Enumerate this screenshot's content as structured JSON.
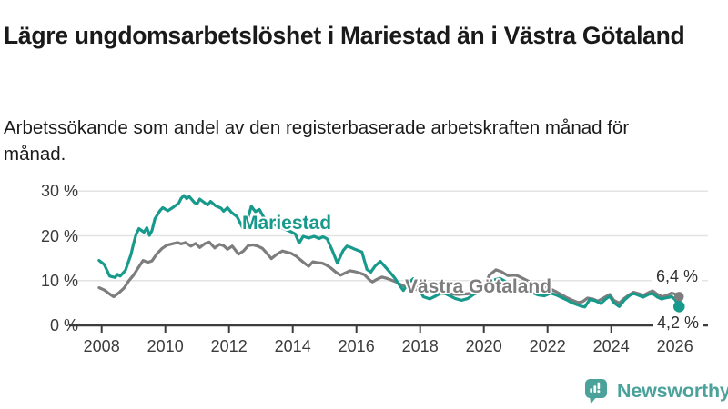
{
  "header": {
    "title": "Lägre ungdomsarbetslöshet i Mariestad än i Västra Götaland",
    "subtitle": "Arbetssökande som andel av den registerbaserade arbetskraften månad för månad."
  },
  "chart_data": {
    "type": "line",
    "title": "Lägre ungdomsarbetslöshet i Mariestad än i Västra Götaland",
    "unit": "%",
    "grid": true,
    "legend_position": "inline-labels-on-lines",
    "colors": {
      "mariestad": "#179a8b",
      "vastra_gotaland": "#7d7d7d",
      "gridline": "#e3e3e3",
      "axis": "#3d3d3d",
      "brand": "#4ba29b"
    },
    "x_axis": {
      "range": [
        2007.9,
        2026.9
      ],
      "ticks": [
        {
          "value": 2008,
          "label": "2008"
        },
        {
          "value": 2010,
          "label": "2010"
        },
        {
          "value": 2012,
          "label": "2012"
        },
        {
          "value": 2014,
          "label": "2014"
        },
        {
          "value": 2016,
          "label": "2016"
        },
        {
          "value": 2018,
          "label": "2018"
        },
        {
          "value": 2020,
          "label": "2020"
        },
        {
          "value": 2022,
          "label": "2022"
        },
        {
          "value": 2024,
          "label": "2024"
        },
        {
          "value": 2026,
          "label": "2026"
        }
      ]
    },
    "y_axis": {
      "range": [
        0,
        30
      ],
      "ticks": [
        {
          "value": 30,
          "label": "30 %"
        },
        {
          "value": 20,
          "label": "20 %"
        },
        {
          "value": 10,
          "label": "10 %"
        },
        {
          "value": 0,
          "label": "0 %"
        }
      ]
    },
    "end_labels": [
      {
        "series": "Västra Götaland",
        "text": "6,4 %"
      },
      {
        "series": "Mariestad",
        "text": "4,2 %"
      }
    ],
    "series": [
      {
        "name": "Västra Götaland",
        "color": "#7d7d7d",
        "last_value": 6.4,
        "points": [
          [
            2007.92,
            8.4
          ],
          [
            2008.08,
            7.9
          ],
          [
            2008.25,
            7.0
          ],
          [
            2008.38,
            6.4
          ],
          [
            2008.55,
            7.3
          ],
          [
            2008.7,
            8.3
          ],
          [
            2008.85,
            9.9
          ],
          [
            2009.0,
            11.2
          ],
          [
            2009.17,
            13.1
          ],
          [
            2009.3,
            14.5
          ],
          [
            2009.45,
            14.1
          ],
          [
            2009.58,
            14.4
          ],
          [
            2009.75,
            16.1
          ],
          [
            2009.9,
            17.2
          ],
          [
            2010.05,
            17.9
          ],
          [
            2010.2,
            18.2
          ],
          [
            2010.38,
            18.5
          ],
          [
            2010.5,
            18.2
          ],
          [
            2010.63,
            18.5
          ],
          [
            2010.8,
            17.7
          ],
          [
            2010.95,
            18.3
          ],
          [
            2011.08,
            17.4
          ],
          [
            2011.25,
            18.3
          ],
          [
            2011.38,
            18.6
          ],
          [
            2011.55,
            17.3
          ],
          [
            2011.7,
            18.1
          ],
          [
            2011.83,
            17.8
          ],
          [
            2011.95,
            17.0
          ],
          [
            2012.1,
            17.7
          ],
          [
            2012.3,
            15.9
          ],
          [
            2012.45,
            16.6
          ],
          [
            2012.6,
            17.8
          ],
          [
            2012.75,
            18.0
          ],
          [
            2012.9,
            17.7
          ],
          [
            2013.05,
            17.2
          ],
          [
            2013.2,
            16.0
          ],
          [
            2013.33,
            14.9
          ],
          [
            2013.5,
            15.9
          ],
          [
            2013.67,
            16.6
          ],
          [
            2013.83,
            16.3
          ],
          [
            2013.95,
            16.1
          ],
          [
            2014.1,
            15.5
          ],
          [
            2014.25,
            14.6
          ],
          [
            2014.42,
            13.6
          ],
          [
            2014.5,
            13.2
          ],
          [
            2014.63,
            14.2
          ],
          [
            2014.78,
            14.0
          ],
          [
            2014.92,
            13.9
          ],
          [
            2015.05,
            13.5
          ],
          [
            2015.2,
            12.8
          ],
          [
            2015.35,
            11.9
          ],
          [
            2015.5,
            11.2
          ],
          [
            2015.67,
            11.8
          ],
          [
            2015.8,
            12.2
          ],
          [
            2015.95,
            12.0
          ],
          [
            2016.1,
            11.7
          ],
          [
            2016.25,
            11.3
          ],
          [
            2016.42,
            10.1
          ],
          [
            2016.5,
            9.7
          ],
          [
            2016.67,
            10.4
          ],
          [
            2016.8,
            10.8
          ],
          [
            2016.95,
            10.5
          ],
          [
            2017.1,
            10.1
          ],
          [
            2017.25,
            9.7
          ],
          [
            2017.42,
            9.0
          ],
          [
            2017.6,
            8.5
          ],
          [
            2017.8,
            8.1
          ],
          [
            2018.0,
            7.8
          ],
          [
            2018.2,
            7.5
          ],
          [
            2018.4,
            7.3
          ],
          [
            2018.6,
            7.2
          ],
          [
            2018.8,
            7.1
          ],
          [
            2019.0,
            7.0
          ],
          [
            2019.2,
            6.9
          ],
          [
            2019.4,
            7.0
          ],
          [
            2019.6,
            7.1
          ],
          [
            2019.8,
            7.4
          ],
          [
            2020.0,
            8.3
          ],
          [
            2020.17,
            11.2
          ],
          [
            2020.38,
            12.4
          ],
          [
            2020.55,
            12.0
          ],
          [
            2020.75,
            11.1
          ],
          [
            2020.95,
            11.2
          ],
          [
            2021.08,
            11.0
          ],
          [
            2021.25,
            10.4
          ],
          [
            2021.5,
            9.5
          ],
          [
            2021.75,
            8.8
          ],
          [
            2021.95,
            8.4
          ],
          [
            2022.1,
            8.1
          ],
          [
            2022.3,
            7.4
          ],
          [
            2022.45,
            6.8
          ],
          [
            2022.6,
            6.2
          ],
          [
            2022.75,
            5.7
          ],
          [
            2022.95,
            5.1
          ],
          [
            2023.1,
            5.3
          ],
          [
            2023.25,
            6.1
          ],
          [
            2023.42,
            5.9
          ],
          [
            2023.58,
            5.4
          ],
          [
            2023.75,
            6.1
          ],
          [
            2023.95,
            6.9
          ],
          [
            2024.08,
            5.6
          ],
          [
            2024.25,
            5.0
          ],
          [
            2024.42,
            6.1
          ],
          [
            2024.58,
            6.9
          ],
          [
            2024.7,
            7.4
          ],
          [
            2024.85,
            7.1
          ],
          [
            2025.0,
            6.7
          ],
          [
            2025.17,
            7.3
          ],
          [
            2025.3,
            7.7
          ],
          [
            2025.45,
            6.9
          ],
          [
            2025.6,
            6.4
          ],
          [
            2025.75,
            6.7
          ],
          [
            2025.9,
            7.2
          ],
          [
            2026.0,
            7.0
          ],
          [
            2026.13,
            6.4
          ]
        ]
      },
      {
        "name": "Mariestad",
        "color": "#179a8b",
        "last_value": 4.2,
        "points": [
          [
            2007.92,
            14.5
          ],
          [
            2008.08,
            13.6
          ],
          [
            2008.25,
            11.0
          ],
          [
            2008.42,
            10.7
          ],
          [
            2008.5,
            11.4
          ],
          [
            2008.58,
            11.0
          ],
          [
            2008.75,
            12.3
          ],
          [
            2008.92,
            15.8
          ],
          [
            2009.0,
            18.2
          ],
          [
            2009.08,
            20.3
          ],
          [
            2009.17,
            21.6
          ],
          [
            2009.33,
            20.8
          ],
          [
            2009.42,
            21.8
          ],
          [
            2009.5,
            20.1
          ],
          [
            2009.58,
            21.2
          ],
          [
            2009.67,
            23.8
          ],
          [
            2009.83,
            25.6
          ],
          [
            2009.92,
            26.3
          ],
          [
            2010.08,
            25.6
          ],
          [
            2010.25,
            26.4
          ],
          [
            2010.42,
            27.3
          ],
          [
            2010.5,
            28.4
          ],
          [
            2010.58,
            29.0
          ],
          [
            2010.67,
            28.3
          ],
          [
            2010.75,
            28.8
          ],
          [
            2010.92,
            27.4
          ],
          [
            2011.0,
            27.2
          ],
          [
            2011.08,
            28.2
          ],
          [
            2011.25,
            27.3
          ],
          [
            2011.33,
            26.9
          ],
          [
            2011.42,
            27.7
          ],
          [
            2011.58,
            26.7
          ],
          [
            2011.75,
            26.2
          ],
          [
            2011.83,
            25.5
          ],
          [
            2011.95,
            26.3
          ],
          [
            2012.08,
            25.2
          ],
          [
            2012.25,
            24.3
          ],
          [
            2012.42,
            21.9
          ],
          [
            2012.58,
            23.7
          ],
          [
            2012.7,
            26.6
          ],
          [
            2012.83,
            25.4
          ],
          [
            2012.95,
            25.9
          ],
          [
            2013.1,
            24.0
          ],
          [
            2013.25,
            23.2
          ],
          [
            2013.42,
            22.5
          ],
          [
            2013.58,
            22.0
          ],
          [
            2013.75,
            21.5
          ],
          [
            2013.92,
            21.0
          ],
          [
            2014.08,
            20.4
          ],
          [
            2014.2,
            18.4
          ],
          [
            2014.33,
            19.9
          ],
          [
            2014.5,
            19.5
          ],
          [
            2014.67,
            19.9
          ],
          [
            2014.83,
            19.4
          ],
          [
            2014.95,
            19.8
          ],
          [
            2015.08,
            19.3
          ],
          [
            2015.25,
            16.6
          ],
          [
            2015.4,
            13.9
          ],
          [
            2015.58,
            16.7
          ],
          [
            2015.7,
            17.7
          ],
          [
            2015.83,
            17.4
          ],
          [
            2015.95,
            17.0
          ],
          [
            2016.17,
            16.4
          ],
          [
            2016.33,
            12.5
          ],
          [
            2016.45,
            11.9
          ],
          [
            2016.58,
            13.2
          ],
          [
            2016.75,
            14.3
          ],
          [
            2016.9,
            13.1
          ],
          [
            2017.05,
            11.9
          ],
          [
            2017.2,
            10.6
          ],
          [
            2017.33,
            9.2
          ],
          [
            2017.47,
            7.8
          ],
          [
            2017.62,
            9.3
          ],
          [
            2017.78,
            10.4
          ],
          [
            2017.95,
            8.4
          ],
          [
            2018.1,
            6.4
          ],
          [
            2018.3,
            5.9
          ],
          [
            2018.5,
            6.6
          ],
          [
            2018.7,
            7.4
          ],
          [
            2018.9,
            6.7
          ],
          [
            2019.1,
            6.0
          ],
          [
            2019.3,
            5.6
          ],
          [
            2019.5,
            6.0
          ],
          [
            2019.7,
            7.0
          ],
          [
            2019.9,
            7.6
          ],
          [
            2020.1,
            8.9
          ],
          [
            2020.3,
            10.1
          ],
          [
            2020.5,
            10.5
          ],
          [
            2020.7,
            9.7
          ],
          [
            2020.9,
            9.1
          ],
          [
            2021.1,
            8.7
          ],
          [
            2021.3,
            8.1
          ],
          [
            2021.5,
            7.4
          ],
          [
            2021.7,
            6.8
          ],
          [
            2021.9,
            6.6
          ],
          [
            2022.1,
            7.2
          ],
          [
            2022.3,
            6.7
          ],
          [
            2022.45,
            6.2
          ],
          [
            2022.6,
            5.7
          ],
          [
            2022.75,
            5.1
          ],
          [
            2022.9,
            4.7
          ],
          [
            2023.05,
            4.3
          ],
          [
            2023.17,
            4.1
          ],
          [
            2023.33,
            5.8
          ],
          [
            2023.5,
            5.5
          ],
          [
            2023.67,
            4.9
          ],
          [
            2023.83,
            5.9
          ],
          [
            2023.95,
            6.5
          ],
          [
            2024.08,
            5.1
          ],
          [
            2024.25,
            4.2
          ],
          [
            2024.42,
            5.7
          ],
          [
            2024.58,
            6.7
          ],
          [
            2024.7,
            7.1
          ],
          [
            2024.83,
            6.8
          ],
          [
            2025.0,
            6.3
          ],
          [
            2025.17,
            6.9
          ],
          [
            2025.3,
            7.1
          ],
          [
            2025.45,
            6.3
          ],
          [
            2025.58,
            5.9
          ],
          [
            2025.75,
            6.2
          ],
          [
            2025.9,
            6.4
          ],
          [
            2026.0,
            5.8
          ],
          [
            2026.13,
            4.2
          ]
        ]
      }
    ]
  },
  "footer": {
    "brand": "Newsworthy"
  }
}
